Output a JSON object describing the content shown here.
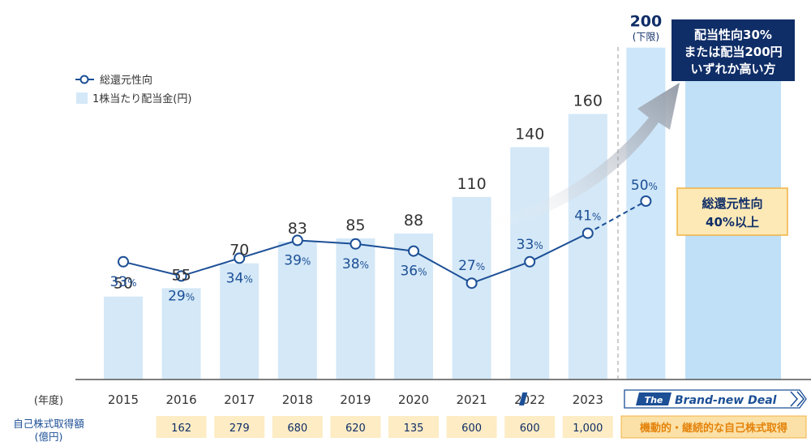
{
  "chart_data": {
    "type": "bar",
    "categories": [
      "2015",
      "2016",
      "2017",
      "2018",
      "2019",
      "2020",
      "2021",
      "2022",
      "2023"
    ],
    "year_axis_label": "(年度)",
    "series": [
      {
        "name": "1株当たり配当金(円)",
        "kind": "bar",
        "values": [
          50,
          55,
          70,
          83,
          85,
          88,
          110,
          140,
          160
        ],
        "labels": [
          "50",
          "55",
          "70",
          "83",
          "85",
          "88",
          "110",
          "140",
          "160"
        ]
      },
      {
        "name": "総還元性向",
        "kind": "line",
        "values": [
          33,
          29,
          34,
          39,
          38,
          36,
          27,
          33,
          41
        ],
        "labels": [
          "33",
          "29",
          "34",
          "39",
          "38",
          "36",
          "27",
          "33",
          "41"
        ],
        "unit": "%"
      }
    ],
    "forecast": {
      "dividend_value": 200,
      "dividend_label": "200",
      "dividend_note": "(下限)",
      "payout_value": 50,
      "payout_label": "50",
      "payout_unit": "%"
    },
    "dividend_ylim": [
      0,
      215
    ],
    "payout_ylim": [
      0,
      100
    ],
    "buyback": {
      "label_line1": "自己株式取得額",
      "label_line2": "(億円)",
      "values": [
        "",
        "162",
        "279",
        "680",
        "620",
        "135",
        "600",
        "600",
        "1,000"
      ]
    },
    "callouts": {
      "policy_lines": [
        "配当性向30%",
        "または配当200円",
        "いずれか高い方"
      ],
      "total_return_lines": [
        "総還元性向",
        "40%以上"
      ],
      "brand_prefix": "The",
      "brand_name": "Brand-new Deal",
      "flexible_buyback": "機動的・継続的な自己株式取得"
    },
    "colors": {
      "bar": "#d4e8f7",
      "bar_future": "#cde6f9",
      "bar_plan": "#bfe0f7",
      "line": "#1c4f96",
      "navy": "#0f2d67",
      "text": "#333333",
      "callout_fill": "#fde9b6",
      "callout_border": "#f0b344",
      "buyback_fill": "#fdecc4",
      "buyback_fill_alt": "#fbe1a7"
    }
  }
}
